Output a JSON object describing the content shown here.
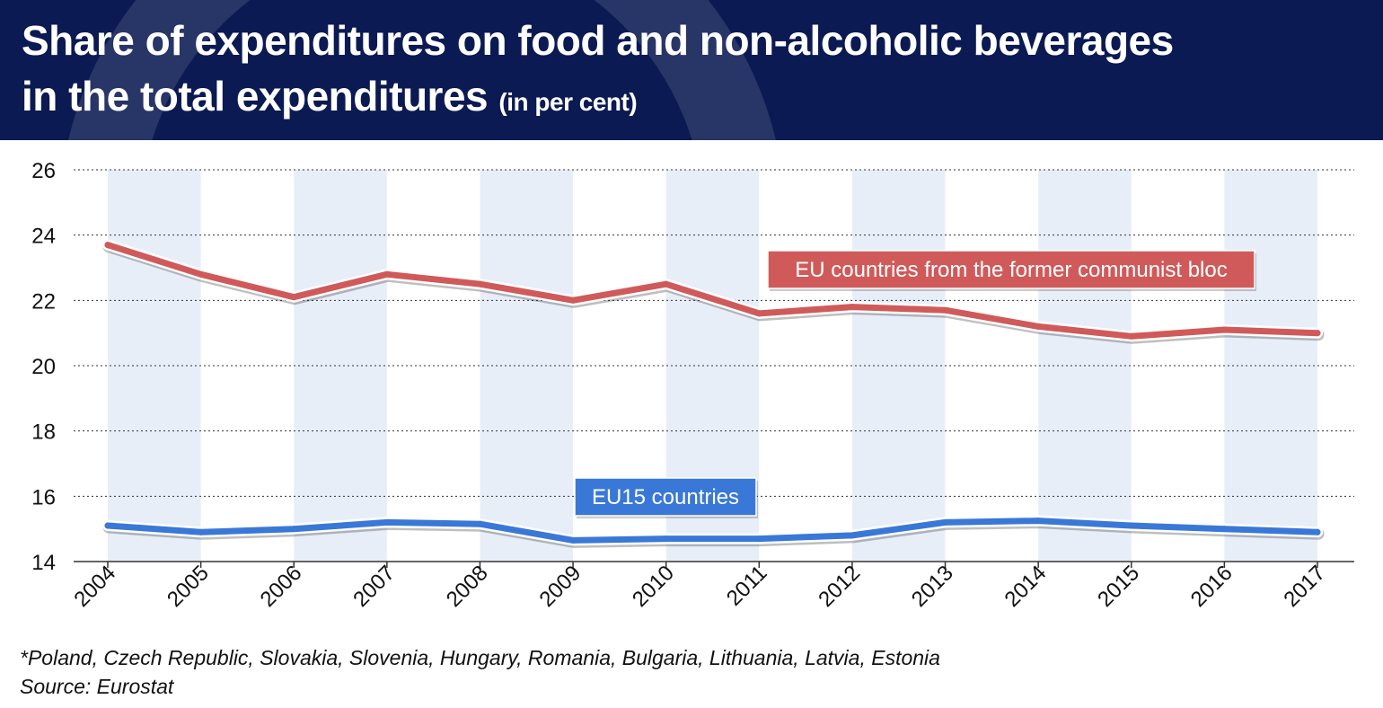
{
  "header": {
    "title_line1": "Share of expenditures on food and non-alcoholic beverages",
    "title_line2": "in the total expenditures",
    "title_unit": "(in per cent)"
  },
  "colors": {
    "header_bg": "#0b1a52",
    "series_former_communist": "#d05a5a",
    "series_eu15": "#3a78d8",
    "label_former_communist_bg": "#d05a5a",
    "label_eu15_bg": "#3a78d8",
    "band": "#e8eef8"
  },
  "chart_data": {
    "type": "line",
    "x": [
      "2004",
      "2005",
      "2006",
      "2007",
      "2008",
      "2009",
      "2010",
      "2011",
      "2012",
      "2013",
      "2014",
      "2015",
      "2016",
      "2017"
    ],
    "ylim": [
      14,
      26
    ],
    "yticks": [
      14,
      16,
      18,
      20,
      22,
      24,
      26
    ],
    "grid": true,
    "shaded_years": [
      "2004",
      "2006",
      "2008",
      "2010",
      "2012",
      "2014",
      "2016"
    ],
    "series": [
      {
        "name": "EU countries from the former communist bloc",
        "values": [
          23.7,
          22.8,
          22.1,
          22.8,
          22.5,
          22.0,
          22.5,
          21.6,
          21.8,
          21.7,
          21.2,
          20.9,
          21.1,
          21.0
        ]
      },
      {
        "name": "EU15 countries",
        "values": [
          15.1,
          14.9,
          15.0,
          15.2,
          15.15,
          14.65,
          14.7,
          14.7,
          14.8,
          15.2,
          15.25,
          15.1,
          15.0,
          14.9
        ]
      }
    ]
  },
  "footnote": {
    "countries": "*Poland, Czech Republic, Slovakia, Slovenia, Hungary, Romania, Bulgaria, Lithuania, Latvia, Estonia",
    "source": "Source: Eurostat"
  }
}
